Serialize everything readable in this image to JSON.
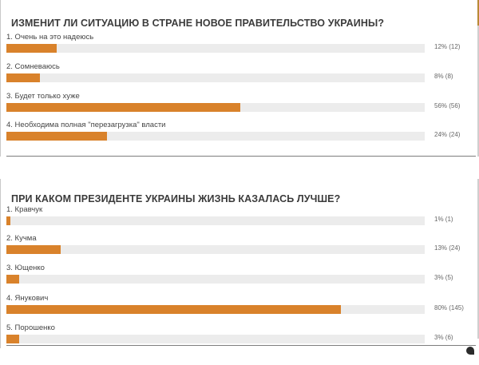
{
  "polls": [
    {
      "title": "ИЗМЕНИТ ЛИ СИТУАЦИЮ В СТРАНЕ НОВОЕ ПРАВИТЕЛЬСТВО УКРАИНЫ?",
      "options": [
        {
          "label": "1. Очень на это надеюсь",
          "percent": 12,
          "result": "12% (12)"
        },
        {
          "label": "2. Сомневаюсь",
          "percent": 8,
          "result": "8% (8)"
        },
        {
          "label": "3. Будет только хуже",
          "percent": 56,
          "result": "56% (56)"
        },
        {
          "label": "4. Необходима полная \"перезагрузка\" власти",
          "percent": 24,
          "result": "24% (24)"
        }
      ]
    },
    {
      "title": "ПРИ КАКОМ ПРЕЗИДЕНТЕ УКРАИНЫ ЖИЗНЬ КАЗАЛАСЬ ЛУЧШЕ?",
      "options": [
        {
          "label": "1. Кравчук",
          "percent": 1,
          "result": "1% (1)"
        },
        {
          "label": "2. Кучма",
          "percent": 13,
          "result": "13% (24)"
        },
        {
          "label": "3. Ющенко",
          "percent": 3,
          "result": "3% (5)"
        },
        {
          "label": "4. Янукович",
          "percent": 80,
          "result": "80% (145)"
        },
        {
          "label": "5. Порошенко",
          "percent": 3,
          "result": "3% (6)"
        }
      ]
    }
  ],
  "colors": {
    "bar_fill": "#d9822b",
    "bar_track": "#ececec",
    "accent": "#b88a36"
  }
}
